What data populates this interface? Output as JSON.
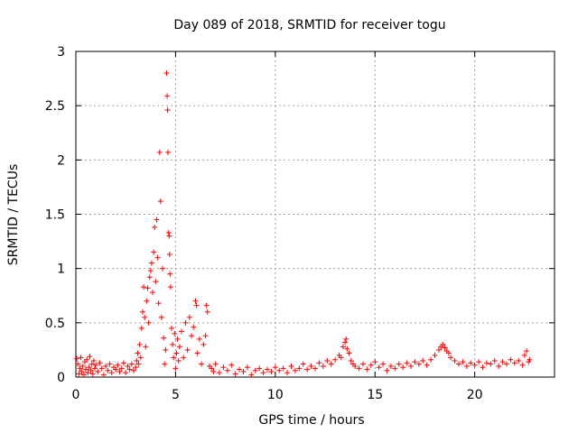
{
  "chart_data": {
    "type": "scatter",
    "title": "Day 089 of 2018, SRMTID for receiver togu",
    "xlabel": "GPS time / hours",
    "ylabel": "SRMTID / TECUs",
    "xlim": [
      0,
      24
    ],
    "ylim": [
      0,
      3
    ],
    "xticks": [
      0,
      5,
      10,
      15,
      20
    ],
    "xtick_labels": [
      "0",
      "5",
      "10",
      "15",
      "20"
    ],
    "yticks": [
      0,
      0.5,
      1,
      1.5,
      2,
      2.5,
      3
    ],
    "ytick_labels": [
      "0",
      "0.5",
      "1",
      "1.5",
      "2",
      "2.5",
      "3"
    ],
    "grid": true,
    "marker": "+",
    "color": "#ff0000",
    "series": [
      {
        "name": "SRMTID",
        "points": [
          [
            0.05,
            0.17
          ],
          [
            0.1,
            0.12
          ],
          [
            0.15,
            0.03
          ],
          [
            0.2,
            0.08
          ],
          [
            0.25,
            0.18
          ],
          [
            0.3,
            0.05
          ],
          [
            0.35,
            0.1
          ],
          [
            0.4,
            0.02
          ],
          [
            0.45,
            0.14
          ],
          [
            0.5,
            0.07
          ],
          [
            0.55,
            0.16
          ],
          [
            0.6,
            0.04
          ],
          [
            0.65,
            0.09
          ],
          [
            0.7,
            0.19
          ],
          [
            0.75,
            0.06
          ],
          [
            0.8,
            0.12
          ],
          [
            0.85,
            0.03
          ],
          [
            0.9,
            0.15
          ],
          [
            0.95,
            0.08
          ],
          [
            1.0,
            0.11
          ],
          [
            1.1,
            0.05
          ],
          [
            1.2,
            0.13
          ],
          [
            1.3,
            0.08
          ],
          [
            1.4,
            0.02
          ],
          [
            1.5,
            0.1
          ],
          [
            1.6,
            0.06
          ],
          [
            1.7,
            0.12
          ],
          [
            1.8,
            0.04
          ],
          [
            1.9,
            0.09
          ],
          [
            2.0,
            0.07
          ],
          [
            2.1,
            0.11
          ],
          [
            2.2,
            0.05
          ],
          [
            2.3,
            0.08
          ],
          [
            2.4,
            0.13
          ],
          [
            2.5,
            0.04
          ],
          [
            2.6,
            0.1
          ],
          [
            2.7,
            0.07
          ],
          [
            2.8,
            0.12
          ],
          [
            2.9,
            0.06
          ],
          [
            3.0,
            0.09
          ],
          [
            3.05,
            0.15
          ],
          [
            3.1,
            0.22
          ],
          [
            3.15,
            0.12
          ],
          [
            3.2,
            0.3
          ],
          [
            3.25,
            0.18
          ],
          [
            3.3,
            0.45
          ],
          [
            3.35,
            0.6
          ],
          [
            3.4,
            0.83
          ],
          [
            3.45,
            0.55
          ],
          [
            3.5,
            0.28
          ],
          [
            3.55,
            0.7
          ],
          [
            3.6,
            0.82
          ],
          [
            3.65,
            0.5
          ],
          [
            3.7,
            0.92
          ],
          [
            3.75,
            0.98
          ],
          [
            3.8,
            1.05
          ],
          [
            3.85,
            0.78
          ],
          [
            3.9,
            1.15
          ],
          [
            3.95,
            1.38
          ],
          [
            4.0,
            0.88
          ],
          [
            4.05,
            1.45
          ],
          [
            4.1,
            1.1
          ],
          [
            4.15,
            0.68
          ],
          [
            4.2,
            2.07
          ],
          [
            4.25,
            1.62
          ],
          [
            4.3,
            0.55
          ],
          [
            4.35,
            1.0
          ],
          [
            4.4,
            0.36
          ],
          [
            4.45,
            0.12
          ],
          [
            4.5,
            0.25
          ],
          [
            4.55,
            2.8
          ],
          [
            4.58,
            2.59
          ],
          [
            4.6,
            2.46
          ],
          [
            4.62,
            2.07
          ],
          [
            4.65,
            1.33
          ],
          [
            4.68,
            1.3
          ],
          [
            4.7,
            1.13
          ],
          [
            4.72,
            0.95
          ],
          [
            4.75,
            0.83
          ],
          [
            4.8,
            0.45
          ],
          [
            4.85,
            0.3
          ],
          [
            4.9,
            0.18
          ],
          [
            4.95,
            0.4
          ],
          [
            5.0,
            0.08
          ],
          [
            5.05,
            0.22
          ],
          [
            5.1,
            0.35
          ],
          [
            5.15,
            0.15
          ],
          [
            5.2,
            0.28
          ],
          [
            5.3,
            0.42
          ],
          [
            5.4,
            0.18
          ],
          [
            5.5,
            0.5
          ],
          [
            5.6,
            0.25
          ],
          [
            5.7,
            0.55
          ],
          [
            5.8,
            0.38
          ],
          [
            5.9,
            0.46
          ],
          [
            6.0,
            0.7
          ],
          [
            6.05,
            0.66
          ],
          [
            6.1,
            0.22
          ],
          [
            6.2,
            0.35
          ],
          [
            6.3,
            0.12
          ],
          [
            6.4,
            0.3
          ],
          [
            6.5,
            0.38
          ],
          [
            6.55,
            0.66
          ],
          [
            6.6,
            0.6
          ],
          [
            6.7,
            0.1
          ],
          [
            6.8,
            0.08
          ],
          [
            6.9,
            0.05
          ],
          [
            7.0,
            0.12
          ],
          [
            7.2,
            0.04
          ],
          [
            7.4,
            0.09
          ],
          [
            7.6,
            0.06
          ],
          [
            7.8,
            0.11
          ],
          [
            8.0,
            0.03
          ],
          [
            8.2,
            0.07
          ],
          [
            8.4,
            0.05
          ],
          [
            8.6,
            0.09
          ],
          [
            8.8,
            0.02
          ],
          [
            9.0,
            0.06
          ],
          [
            9.2,
            0.08
          ],
          [
            9.4,
            0.04
          ],
          [
            9.6,
            0.07
          ],
          [
            9.8,
            0.05
          ],
          [
            10.0,
            0.09
          ],
          [
            10.2,
            0.06
          ],
          [
            10.4,
            0.08
          ],
          [
            10.6,
            0.04
          ],
          [
            10.8,
            0.1
          ],
          [
            11.0,
            0.06
          ],
          [
            11.2,
            0.08
          ],
          [
            11.4,
            0.12
          ],
          [
            11.6,
            0.07
          ],
          [
            11.8,
            0.1
          ],
          [
            12.0,
            0.08
          ],
          [
            12.2,
            0.13
          ],
          [
            12.4,
            0.1
          ],
          [
            12.6,
            0.15
          ],
          [
            12.8,
            0.12
          ],
          [
            13.0,
            0.16
          ],
          [
            13.2,
            0.2
          ],
          [
            13.3,
            0.18
          ],
          [
            13.4,
            0.28
          ],
          [
            13.5,
            0.32
          ],
          [
            13.55,
            0.35
          ],
          [
            13.6,
            0.26
          ],
          [
            13.7,
            0.22
          ],
          [
            13.8,
            0.15
          ],
          [
            13.9,
            0.12
          ],
          [
            14.0,
            0.1
          ],
          [
            14.2,
            0.08
          ],
          [
            14.4,
            0.12
          ],
          [
            14.6,
            0.07
          ],
          [
            14.8,
            0.11
          ],
          [
            15.0,
            0.14
          ],
          [
            15.2,
            0.09
          ],
          [
            15.4,
            0.12
          ],
          [
            15.6,
            0.06
          ],
          [
            15.8,
            0.1
          ],
          [
            16.0,
            0.08
          ],
          [
            16.2,
            0.12
          ],
          [
            16.4,
            0.09
          ],
          [
            16.6,
            0.13
          ],
          [
            16.8,
            0.1
          ],
          [
            17.0,
            0.14
          ],
          [
            17.2,
            0.12
          ],
          [
            17.4,
            0.15
          ],
          [
            17.6,
            0.11
          ],
          [
            17.8,
            0.16
          ],
          [
            18.0,
            0.2
          ],
          [
            18.2,
            0.25
          ],
          [
            18.3,
            0.28
          ],
          [
            18.4,
            0.3
          ],
          [
            18.5,
            0.27
          ],
          [
            18.6,
            0.24
          ],
          [
            18.7,
            0.22
          ],
          [
            18.8,
            0.18
          ],
          [
            19.0,
            0.15
          ],
          [
            19.2,
            0.12
          ],
          [
            19.4,
            0.14
          ],
          [
            19.6,
            0.1
          ],
          [
            19.8,
            0.13
          ],
          [
            20.0,
            0.11
          ],
          [
            20.2,
            0.14
          ],
          [
            20.4,
            0.09
          ],
          [
            20.6,
            0.13
          ],
          [
            20.8,
            0.12
          ],
          [
            21.0,
            0.15
          ],
          [
            21.2,
            0.1
          ],
          [
            21.4,
            0.14
          ],
          [
            21.6,
            0.12
          ],
          [
            21.8,
            0.16
          ],
          [
            22.0,
            0.13
          ],
          [
            22.2,
            0.15
          ],
          [
            22.4,
            0.11
          ],
          [
            22.5,
            0.2
          ],
          [
            22.6,
            0.24
          ],
          [
            22.7,
            0.14
          ],
          [
            22.75,
            0.16
          ]
        ]
      }
    ]
  }
}
